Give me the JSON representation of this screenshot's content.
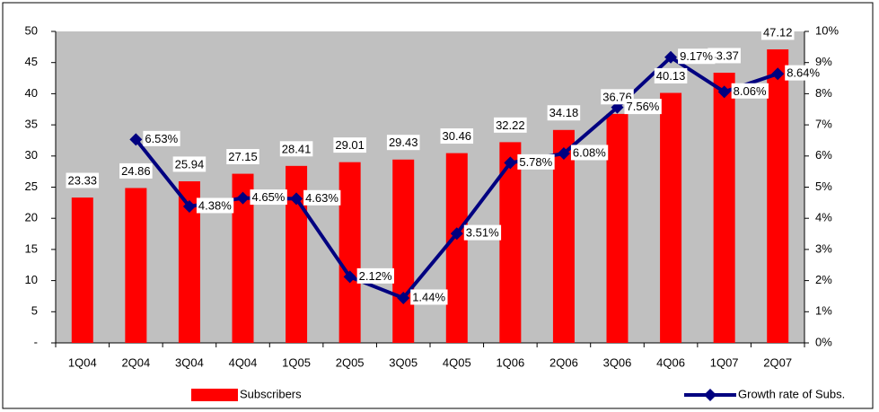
{
  "chart_data": {
    "type": "bar",
    "categories": [
      "1Q04",
      "2Q04",
      "3Q04",
      "4Q04",
      "1Q05",
      "2Q05",
      "3Q05",
      "4Q05",
      "1Q06",
      "2Q06",
      "3Q06",
      "4Q06",
      "1Q07",
      "2Q07"
    ],
    "series": [
      {
        "name": "Subscribers",
        "type": "bar",
        "color": "#ff0000",
        "axis": "y",
        "values": [
          23.33,
          24.86,
          25.94,
          27.15,
          28.41,
          29.01,
          29.43,
          30.46,
          32.22,
          34.18,
          36.76,
          40.13,
          43.37,
          47.12
        ]
      },
      {
        "name": "Growth rate of Subs.",
        "type": "line",
        "color": "#000080",
        "axis": "y2",
        "values": [
          null,
          6.53,
          4.38,
          4.65,
          4.63,
          2.12,
          1.44,
          3.51,
          5.78,
          6.08,
          7.56,
          9.17,
          8.06,
          8.64
        ],
        "value_labels": [
          null,
          "6.53%",
          "4.38%",
          "4.65%",
          "4.63%",
          "2.12%",
          "1.44%",
          "3.51%",
          "5.78%",
          "6.08%",
          "7.56%",
          "9.17%",
          "8.06%",
          "8.64%"
        ]
      }
    ],
    "ylim": [
      0,
      50
    ],
    "yticks": [
      {
        "value": 0,
        "label": "-"
      },
      5,
      10,
      15,
      20,
      25,
      30,
      35,
      40,
      45,
      50
    ],
    "y2lim": [
      0,
      10
    ],
    "y2ticks": [
      {
        "value": 0,
        "label": "0%"
      },
      {
        "value": 1,
        "label": "1%"
      },
      {
        "value": 2,
        "label": "2%"
      },
      {
        "value": 3,
        "label": "3%"
      },
      {
        "value": 4,
        "label": "4%"
      },
      {
        "value": 5,
        "label": "5%"
      },
      {
        "value": 6,
        "label": "6%"
      },
      {
        "value": 7,
        "label": "7%"
      },
      {
        "value": 8,
        "label": "8%"
      },
      {
        "value": 9,
        "label": "9%"
      },
      {
        "value": 10,
        "label": "10%"
      }
    ],
    "grid": false,
    "legend": "bottom",
    "plot_background": "#c0c0c0"
  }
}
